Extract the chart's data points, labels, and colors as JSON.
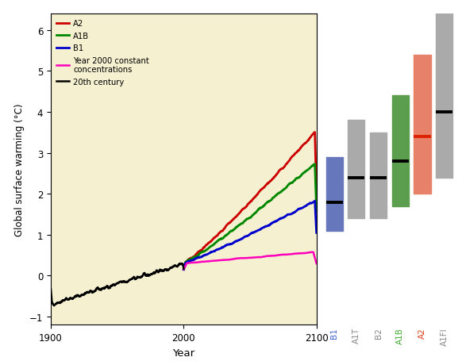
{
  "xlabel": "Year",
  "ylabel": "Global surface warming (°C)",
  "bg_color": "#f5f0d0",
  "xlim": [
    1900,
    2100
  ],
  "ylim": [
    -1.2,
    6.4
  ],
  "yticks": [
    -1.0,
    0.0,
    1.0,
    2.0,
    3.0,
    4.0,
    5.0,
    6.0
  ],
  "xticks": [
    1900,
    2000,
    2100
  ],
  "sc_list": [
    "B1",
    "A1T",
    "B2",
    "A1B",
    "A2",
    "A1FI"
  ],
  "best_vals": {
    "B1": 1.8,
    "A1T": 2.4,
    "B2": 2.4,
    "A1B": 2.8,
    "A2": 3.4,
    "A1FI": 4.0
  },
  "low_vals": {
    "B1": 1.1,
    "A1T": 1.4,
    "B2": 1.4,
    "A1B": 1.7,
    "A2": 2.0,
    "A1FI": 2.4
  },
  "high_vals": {
    "B1": 2.9,
    "A1T": 3.8,
    "B2": 3.5,
    "A1B": 4.4,
    "A2": 5.4,
    "A1FI": 6.4
  },
  "bar_colors": {
    "B1": "#6677bb",
    "A1T": "#aaaaaa",
    "B2": "#aaaaaa",
    "A1B": "#5a9e4e",
    "A2": "#e8816a",
    "A1FI": "#aaaaaa"
  },
  "best_line_colors": {
    "B1": "#000000",
    "A1T": "#000000",
    "B2": "#000000",
    "A1B": "#000000",
    "A2": "#dd2200",
    "A1FI": "#000000"
  },
  "label_colors": {
    "B1": "#4466cc",
    "A1T": "#888888",
    "B2": "#888888",
    "A1B": "#44aa33",
    "A2": "#dd4422",
    "A1FI": "#888888"
  },
  "line_colors": {
    "A2": "#cc0000",
    "A1B": "#008800",
    "B1": "#0000cc",
    "Y2000": "#ff00bb",
    "hist": "#000000"
  },
  "legend_labels": [
    "A2",
    "A1B",
    "B1",
    "Year 2000 constant\nconcentrations",
    "20th century"
  ]
}
